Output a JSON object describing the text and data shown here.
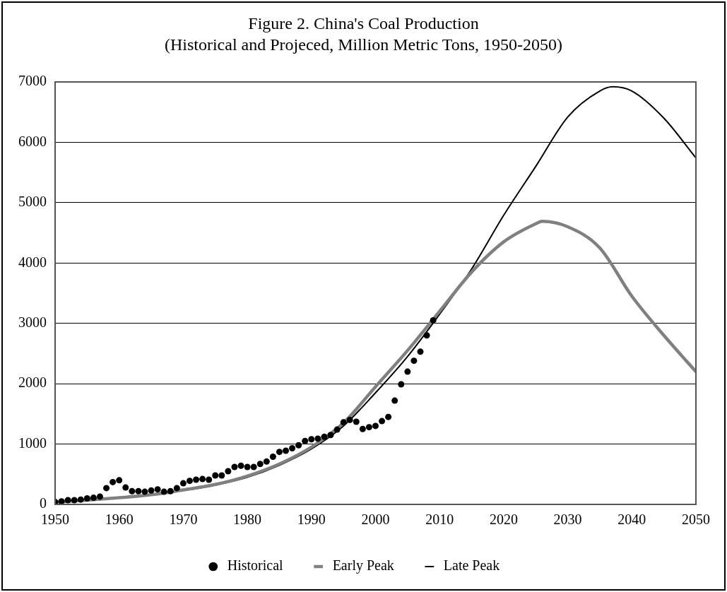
{
  "chart_data": {
    "type": "line",
    "title": "Figure 2. China's Coal Production",
    "subtitle": "(Historical and Projeced, Million Metric Tons, 1950-2050)",
    "xlim": [
      1950,
      2050
    ],
    "xticks": [
      1950,
      1960,
      1970,
      1980,
      1990,
      2000,
      2010,
      2020,
      2030,
      2040,
      2050
    ],
    "ylim": [
      0,
      7000
    ],
    "yticks": [
      0,
      1000,
      2000,
      3000,
      4000,
      5000,
      6000,
      7000
    ],
    "grid": "y",
    "legend": "bottom",
    "series": [
      {
        "name": "Historical",
        "type": "scatter",
        "marker": "circle",
        "color": "#000000",
        "x": [
          1950,
          1951,
          1952,
          1953,
          1954,
          1955,
          1956,
          1957,
          1958,
          1959,
          1960,
          1961,
          1962,
          1963,
          1964,
          1965,
          1966,
          1967,
          1968,
          1969,
          1970,
          1971,
          1972,
          1973,
          1974,
          1975,
          1976,
          1977,
          1978,
          1979,
          1980,
          1981,
          1982,
          1983,
          1984,
          1985,
          1986,
          1987,
          1988,
          1989,
          1990,
          1991,
          1992,
          1993,
          1994,
          1995,
          1996,
          1997,
          1998,
          1999,
          2000,
          2001,
          2002,
          2003,
          2004,
          2005,
          2006,
          2007,
          2008,
          2009
        ],
        "values": [
          40,
          50,
          70,
          70,
          80,
          100,
          110,
          130,
          270,
          370,
          400,
          280,
          220,
          220,
          210,
          230,
          250,
          210,
          220,
          270,
          350,
          390,
          410,
          420,
          410,
          480,
          480,
          550,
          620,
          640,
          620,
          620,
          670,
          710,
          790,
          870,
          890,
          930,
          980,
          1050,
          1080,
          1090,
          1120,
          1150,
          1240,
          1360,
          1400,
          1370,
          1250,
          1280,
          1300,
          1380,
          1450,
          1720,
          1990,
          2200,
          2380,
          2530,
          2800,
          3050
        ]
      },
      {
        "name": "Early Peak",
        "type": "line",
        "marker": "none",
        "color": "#808080",
        "x": [
          1950,
          1955,
          1960,
          1965,
          1970,
          1975,
          1980,
          1985,
          1990,
          1995,
          2000,
          2005,
          2010,
          2015,
          2020,
          2025,
          2026,
          2030,
          2035,
          2040,
          2045,
          2050
        ],
        "values": [
          40,
          70,
          110,
          160,
          240,
          330,
          470,
          670,
          950,
          1350,
          1950,
          2550,
          3200,
          3850,
          4350,
          4650,
          4690,
          4600,
          4250,
          3450,
          2800,
          2200
        ]
      },
      {
        "name": "Late Peak",
        "type": "line",
        "marker": "none",
        "color": "#000000",
        "x": [
          1950,
          1955,
          1960,
          1965,
          1970,
          1975,
          1980,
          1985,
          1990,
          1995,
          2000,
          2005,
          2010,
          2015,
          2020,
          2025,
          2030,
          2035,
          2037,
          2040,
          2045,
          2050
        ],
        "values": [
          40,
          70,
          110,
          160,
          230,
          320,
          450,
          650,
          920,
          1300,
          1850,
          2450,
          3150,
          3900,
          4790,
          5600,
          6420,
          6850,
          6920,
          6850,
          6400,
          5740
        ]
      }
    ]
  }
}
